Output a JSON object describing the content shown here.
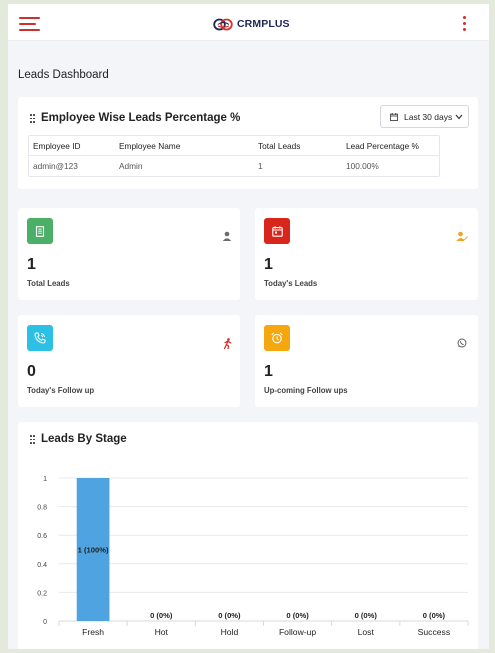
{
  "header": {
    "brand": "CRMPLUS",
    "menu_icon": "hamburger-icon",
    "more_icon": "vertical-dots-icon",
    "accent_color": "#c9322c"
  },
  "page_title": "Leads Dashboard",
  "employee_section": {
    "title": "Employee Wise Leads Percentage %",
    "date_filter": "Last 30 days",
    "columns": [
      "Employee ID",
      "Employee Name",
      "Total Leads",
      "Lead Percentage %"
    ],
    "rows": [
      [
        "admin@123",
        "Admin",
        "1",
        "100.00%"
      ]
    ]
  },
  "stats": [
    {
      "value": "1",
      "label": "Total Leads",
      "icon": "document-icon",
      "icon_bg": "#4caf68",
      "corner_icon": "user-icon",
      "corner_color": "#6b6b6b"
    },
    {
      "value": "1",
      "label": "Today's Leads",
      "icon": "calendar-icon",
      "icon_bg": "#d9261c",
      "corner_icon": "user-edit-icon",
      "corner_color": "#f0a31f"
    },
    {
      "value": "0",
      "label": "Today's Follow up",
      "icon": "phone-icon",
      "icon_bg": "#2bc0e4",
      "corner_icon": "running-person-icon",
      "corner_color": "#d9261c"
    },
    {
      "value": "1",
      "label": "Up-coming Follow ups",
      "icon": "alarm-clock-icon",
      "icon_bg": "#f5a70f",
      "corner_icon": "whatsapp-icon",
      "corner_color": "#555555"
    }
  ],
  "stage_section": {
    "title": "Leads By Stage"
  },
  "chart_data": {
    "type": "bar",
    "title": "",
    "categories": [
      "Fresh",
      "Hot",
      "Hold",
      "Follow-up",
      "Lost",
      "Success"
    ],
    "values": [
      1,
      0,
      0,
      0,
      0,
      0
    ],
    "data_labels": [
      "1 (100%)",
      "0 (0%)",
      "0 (0%)",
      "0 (0%)",
      "0 (0%)",
      "0 (0%)"
    ],
    "y_ticks": [
      "0",
      "0.2",
      "0.4",
      "0.6",
      "0.8",
      "1"
    ],
    "ylim": [
      0,
      1
    ],
    "bar_color": "#4fa3e0",
    "grid": true,
    "xlabel": "",
    "ylabel": ""
  }
}
